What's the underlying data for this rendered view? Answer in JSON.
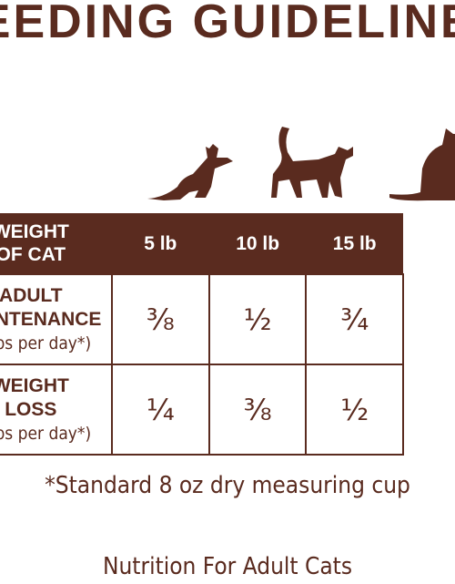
{
  "header": {
    "title": "FEEDING GUIDELINES"
  },
  "table": {
    "header": [
      [
        "WEIGHT",
        "OF CAT"
      ],
      "5 lb",
      "10 lb",
      "15 lb"
    ],
    "rows": [
      {
        "label": [
          "ADULT",
          "MAINTENANCE"
        ],
        "unit": "(cups per day*)",
        "cells": [
          "⅜",
          "½",
          "¾"
        ]
      },
      {
        "label": [
          "WEIGHT",
          "LOSS"
        ],
        "unit": "(cups per day*)",
        "cells": [
          "¼",
          "⅜",
          "½"
        ]
      }
    ]
  },
  "footnote": "*Standard 8 oz dry measuring cup",
  "caption": "Nutrition For Adult Cats"
}
